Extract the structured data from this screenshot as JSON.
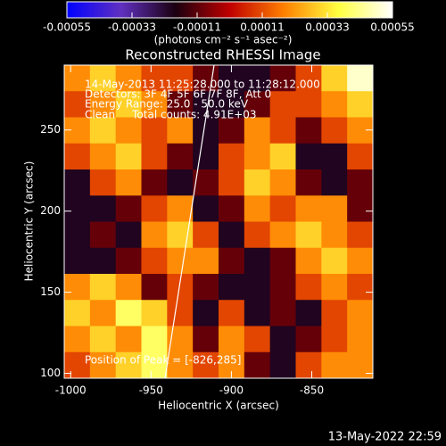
{
  "chart_data": {
    "type": "heatmap",
    "title": "Reconstructed RHESSI Image",
    "x_label": "Heliocentric X (arcsec)",
    "y_label": "Heliocentric Y (arcsec)",
    "colorbar_label": "(photons cm⁻² s⁻¹ asec⁻²)",
    "annotations": [
      "14-May-2013 11:25:28.000 to 11:28:12.000",
      "Detectors: 3F 4F 5F 6F 7F 8F, Att 0",
      "Energy Range: 25.0 - 50.0 keV",
      "Clean     Total counts: 4.91E+03"
    ],
    "peak_label": "Position of Peak = [-826,285]",
    "timestamp": "13-May-2022 22:59",
    "xlim": [
      -1004,
      -812
    ],
    "xticks": [
      -1000,
      -950,
      -900,
      -850
    ],
    "ylim": [
      97,
      290
    ],
    "yticks": [
      100,
      150,
      200,
      250
    ],
    "cblim": [
      -0.00055,
      0.00055
    ],
    "cbticks": [
      -0.00055,
      -0.00033,
      -0.00011,
      0.00011,
      0.00033,
      0.00055
    ],
    "colormap": [
      "#0000ff",
      "#6030c0",
      "#1a0010",
      "#c00000",
      "#ff8000",
      "#ffff40",
      "#ffffff"
    ],
    "z": [
      [
        0.0002,
        0.0003,
        0.0002,
        0.0001,
        0.0001,
        -0.0001,
        -0.0002,
        -0.0002,
        -0.0001,
        0.0001,
        0.0003,
        0.0005
      ],
      [
        0.0001,
        0.0002,
        0.0003,
        0.0002,
        -0.0001,
        -0.0002,
        -0.0002,
        -0.0001,
        0.0001,
        0.0001,
        0.0002,
        0.0003
      ],
      [
        0.0002,
        0.0003,
        0.0002,
        0.0001,
        0.0002,
        -0.0002,
        -0.0001,
        0.0002,
        0.0001,
        -0.0001,
        0.0001,
        0.0002
      ],
      [
        0.0001,
        0.0002,
        0.0003,
        0.0001,
        -0.0001,
        -0.0002,
        0.0001,
        0.0002,
        0.0003,
        -0.0002,
        -0.0002,
        0.0001
      ],
      [
        -0.0002,
        0.0001,
        0.0002,
        -0.0001,
        -0.0002,
        -0.0001,
        0.0001,
        0.0003,
        0.0002,
        -0.0001,
        -0.0002,
        -0.0001
      ],
      [
        -0.0002,
        -0.0002,
        -0.0001,
        0.0001,
        0.0002,
        -0.0002,
        -0.0001,
        0.0002,
        0.0001,
        0.0002,
        0.0002,
        -0.0001
      ],
      [
        -0.0002,
        -0.0001,
        -0.0002,
        0.0002,
        0.0003,
        0.0001,
        -0.0002,
        0.0001,
        0.0002,
        0.0003,
        0.0002,
        0.0001
      ],
      [
        -0.0002,
        -0.0002,
        -0.0001,
        0.0001,
        0.0002,
        0.0002,
        -0.0001,
        -0.0002,
        -0.0001,
        0.0002,
        0.0003,
        0.0002
      ],
      [
        0.0002,
        0.0003,
        0.0002,
        -0.0001,
        0.0001,
        -0.0001,
        -0.0002,
        -0.0002,
        -0.0001,
        0.0001,
        0.0002,
        0.0001
      ],
      [
        0.0003,
        0.0002,
        0.0004,
        0.0003,
        0.0001,
        -0.0002,
        0.0001,
        -0.0002,
        -0.0001,
        -0.0002,
        0.0001,
        0.0002
      ],
      [
        0.0002,
        0.0003,
        0.0002,
        0.0004,
        0.0002,
        -0.0001,
        0.0002,
        0.0001,
        -0.0002,
        -0.0001,
        0.0001,
        0.0002
      ],
      [
        0.0001,
        0.0002,
        0.0003,
        0.0004,
        0.0002,
        0.0001,
        0.0002,
        -0.0001,
        -0.0002,
        0.0001,
        0.0002,
        0.0002
      ]
    ]
  }
}
